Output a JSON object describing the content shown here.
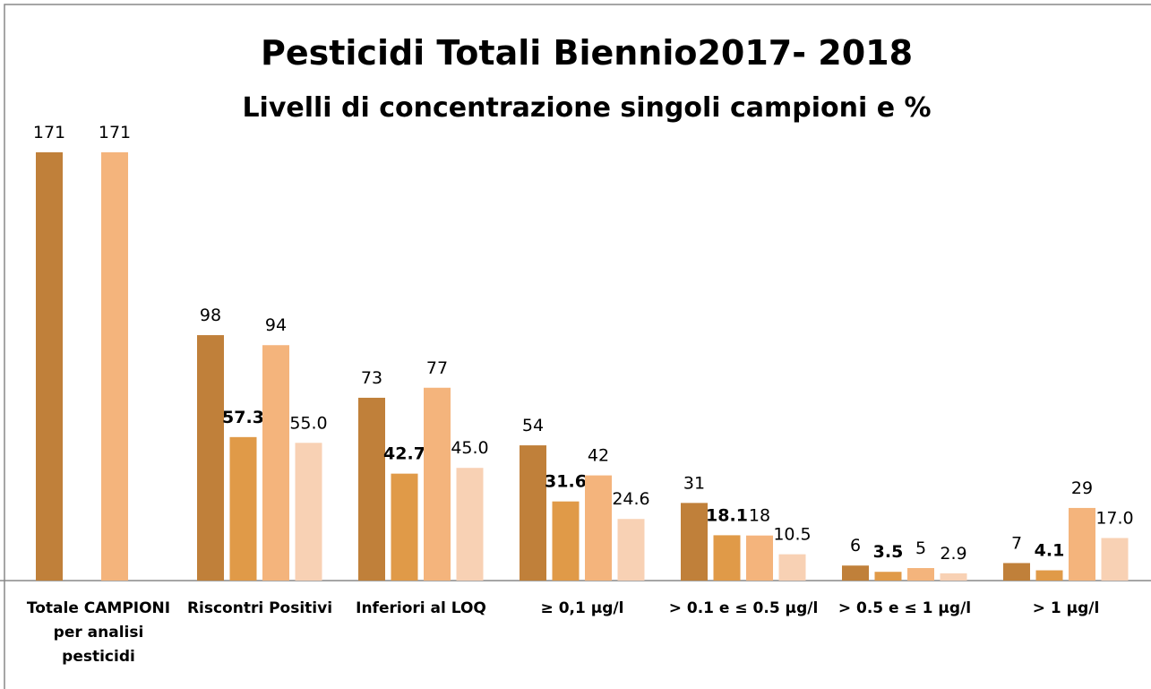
{
  "chart_data": {
    "type": "bar",
    "title": "Pesticidi Totali Biennio2017- 2018",
    "subtitle": "Livelli di concentrazione singoli campioni e %",
    "categories": [
      "Totale CAMPIONI per analisi pesticidi",
      "Riscontri Positivi",
      "Inferiori al LOQ",
      "≥ 0,1 µg/l",
      ">  0.1 e  ≤ 0.5 µg/l",
      "> 0.5 e ≤ 1 µg/l",
      "> 1 µg/l"
    ],
    "series": [
      {
        "color": "#c0803a",
        "values": [
          171,
          98,
          73,
          54,
          31,
          6,
          7
        ]
      },
      {
        "color": "#e09a48",
        "label_bold": true,
        "values": [
          null,
          57.3,
          42.7,
          31.6,
          18.1,
          3.5,
          4.1
        ]
      },
      {
        "color": "#f4b47c",
        "values": [
          171,
          94,
          77,
          42,
          18,
          5,
          29
        ]
      },
      {
        "color": "#f8d1b4",
        "values": [
          null,
          55.0,
          45.0,
          24.6,
          10.5,
          2.9,
          17.0
        ],
        "value_labels": [
          null,
          "55.0",
          "45.0",
          "24.6",
          "10.5",
          "2.9",
          "17.0"
        ]
      }
    ],
    "ylim": [
      0,
      171
    ]
  }
}
